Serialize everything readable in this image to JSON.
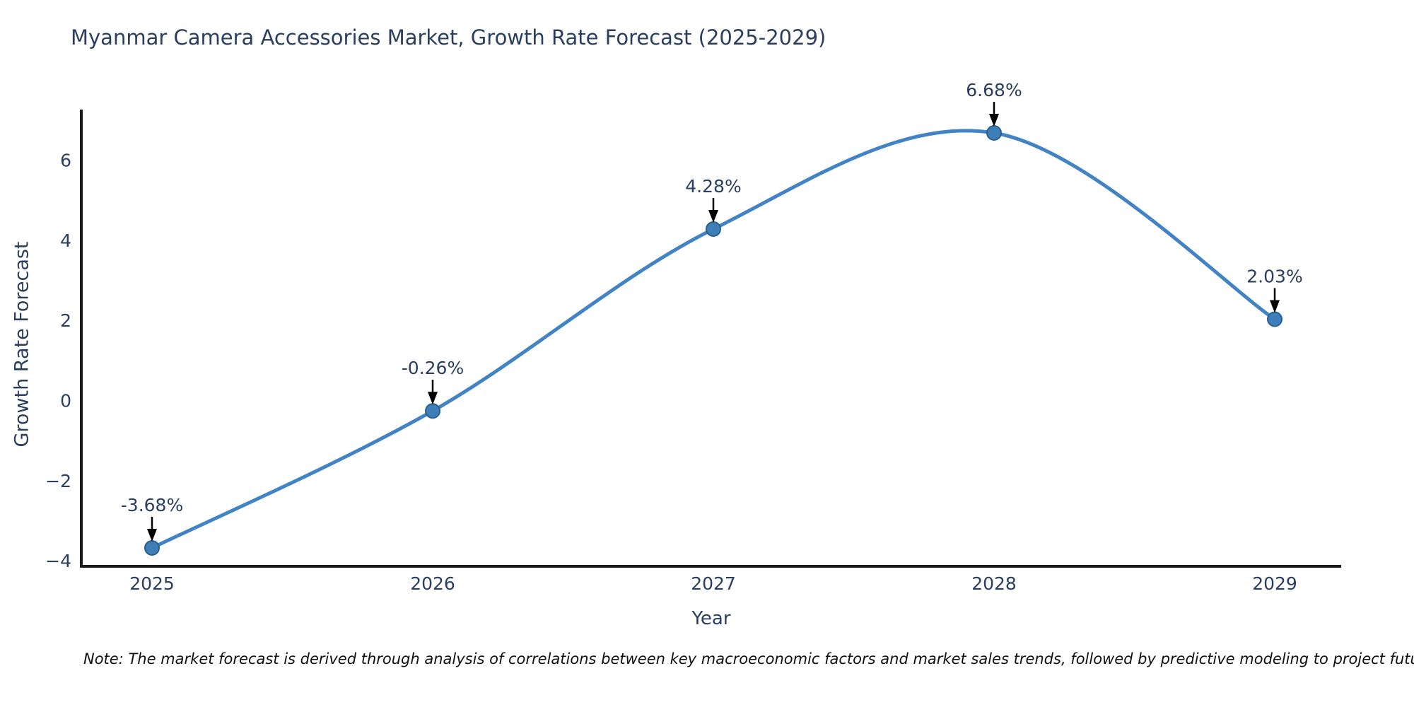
{
  "figure": {
    "note": "Note: The market forecast is derived through analysis of correlations between key macroeconomic factors and market sales trends, followed by predictive modeling to project future sales"
  },
  "chart_data": {
    "type": "line",
    "title": "Myanmar Camera Accessories Market, Growth Rate Forecast (2025-2029)",
    "xlabel": "Year",
    "ylabel": "Growth Rate Forecast",
    "categories": [
      "2025",
      "2026",
      "2027",
      "2028",
      "2029"
    ],
    "series": [
      {
        "name": "Growth Rate Forecast",
        "values": [
          -3.68,
          -0.26,
          4.28,
          6.68,
          2.03
        ]
      }
    ],
    "point_labels": [
      "-3.68%",
      "-0.26%",
      "4.28%",
      "6.68%",
      "2.03%"
    ],
    "yticks": [
      6,
      4,
      2,
      0,
      -2,
      -4
    ],
    "ylim": [
      -4.2,
      7.3
    ],
    "grid": false,
    "legend": "none",
    "line_shape": "spline",
    "colors": {
      "line": "#4183c4",
      "marker_fill": "#3e7fba",
      "marker_edge": "#2a5f8f",
      "axis_spine": "#1a1a1a",
      "text": "#2a3f5f",
      "annotation_arrow": "#000000"
    }
  }
}
